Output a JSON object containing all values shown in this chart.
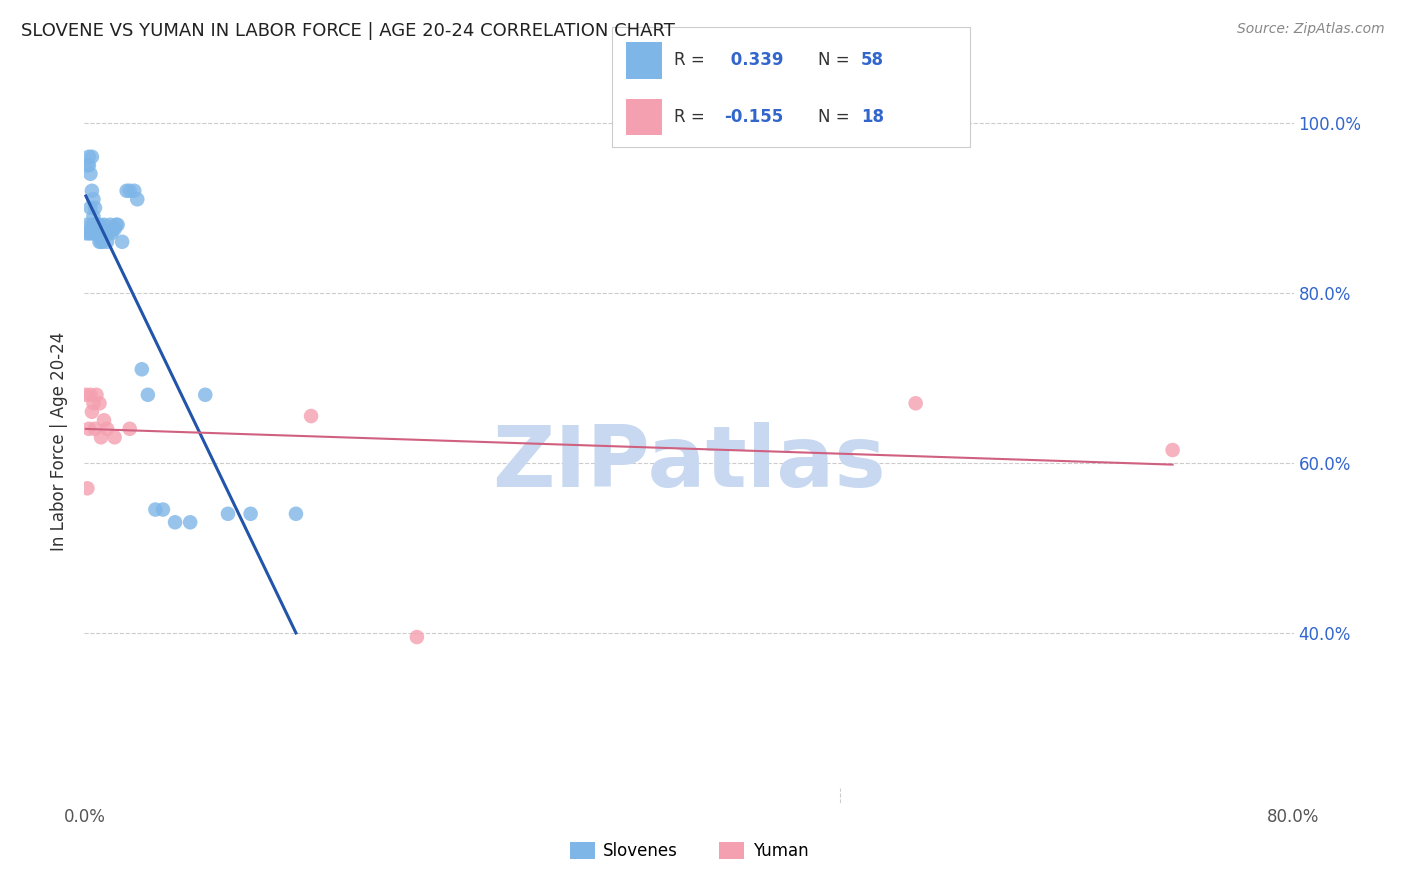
{
  "title": "SLOVENE VS YUMAN IN LABOR FORCE | AGE 20-24 CORRELATION CHART",
  "source": "Source: ZipAtlas.com",
  "ylabel": "In Labor Force | Age 20-24",
  "xmin": 0.0,
  "xmax": 0.8,
  "ymin": 0.2,
  "ymax": 1.05,
  "ytick_vals": [
    0.4,
    0.6,
    0.8,
    1.0
  ],
  "ytick_labels": [
    "40.0%",
    "60.0%",
    "80.0%",
    "100.0%"
  ],
  "slovene_color": "#7EB6E8",
  "yuman_color": "#F4A0B0",
  "trendline_slovene_color": "#2255AA",
  "trendline_yuman_color": "#D06080",
  "watermark": "ZIPatlas",
  "watermark_color": "#C8D8F0",
  "background_color": "#FFFFFF",
  "slovene_x": [
    0.001,
    0.002,
    0.002,
    0.003,
    0.003,
    0.003,
    0.004,
    0.004,
    0.004,
    0.005,
    0.005,
    0.005,
    0.006,
    0.006,
    0.006,
    0.006,
    0.007,
    0.007,
    0.007,
    0.008,
    0.008,
    0.008,
    0.009,
    0.009,
    0.01,
    0.01,
    0.01,
    0.011,
    0.011,
    0.012,
    0.012,
    0.013,
    0.013,
    0.014,
    0.015,
    0.015,
    0.016,
    0.017,
    0.018,
    0.019,
    0.02,
    0.021,
    0.022,
    0.025,
    0.028,
    0.03,
    0.033,
    0.035,
    0.038,
    0.042,
    0.047,
    0.052,
    0.06,
    0.07,
    0.08,
    0.095,
    0.11,
    0.14
  ],
  "slovene_y": [
    0.87,
    0.88,
    0.95,
    0.87,
    0.95,
    0.96,
    0.87,
    0.9,
    0.94,
    0.88,
    0.92,
    0.96,
    0.87,
    0.88,
    0.89,
    0.91,
    0.87,
    0.88,
    0.9,
    0.87,
    0.88,
    0.87,
    0.87,
    0.88,
    0.86,
    0.87,
    0.88,
    0.86,
    0.87,
    0.86,
    0.87,
    0.87,
    0.88,
    0.87,
    0.86,
    0.87,
    0.87,
    0.88,
    0.87,
    0.875,
    0.875,
    0.88,
    0.88,
    0.86,
    0.92,
    0.92,
    0.92,
    0.91,
    0.71,
    0.68,
    0.545,
    0.545,
    0.53,
    0.53,
    0.68,
    0.54,
    0.54,
    0.54
  ],
  "yuman_x": [
    0.001,
    0.002,
    0.003,
    0.004,
    0.005,
    0.006,
    0.007,
    0.008,
    0.01,
    0.011,
    0.013,
    0.015,
    0.02,
    0.03,
    0.15,
    0.22,
    0.55,
    0.72
  ],
  "yuman_y": [
    0.68,
    0.57,
    0.64,
    0.68,
    0.66,
    0.67,
    0.64,
    0.68,
    0.67,
    0.63,
    0.65,
    0.64,
    0.63,
    0.64,
    0.655,
    0.395,
    0.67,
    0.615
  ]
}
